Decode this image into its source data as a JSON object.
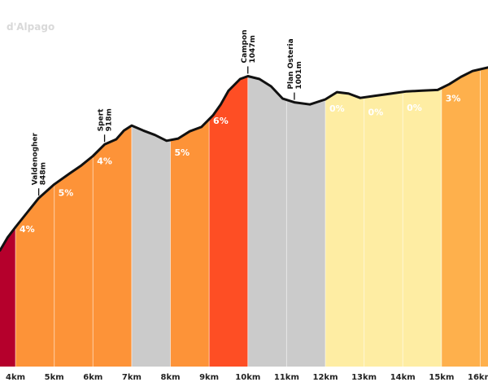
{
  "brand_text": "d'Alpago",
  "chart_data": {
    "type": "area",
    "title": "",
    "xlabel": "",
    "ylabel": "",
    "x_unit": "km",
    "xlim": [
      3.6,
      16.2
    ],
    "ylim": [
      600,
      1060
    ],
    "x_ticks": [
      4,
      5,
      6,
      7,
      8,
      9,
      10,
      11,
      12,
      13,
      14,
      15,
      16
    ],
    "x_tick_labels": [
      "4km",
      "5km",
      "6km",
      "7km",
      "8km",
      "9km",
      "10km",
      "11km",
      "12km",
      "13km",
      "14km",
      "15km",
      "16km"
    ],
    "profile": [
      {
        "km": 3.6,
        "ele": 760
      },
      {
        "km": 3.8,
        "ele": 778
      },
      {
        "km": 4.0,
        "ele": 792
      },
      {
        "km": 4.3,
        "ele": 812
      },
      {
        "km": 4.6,
        "ele": 832
      },
      {
        "km": 5.0,
        "ele": 851
      },
      {
        "km": 5.4,
        "ele": 866
      },
      {
        "km": 5.7,
        "ele": 877
      },
      {
        "km": 6.0,
        "ele": 890
      },
      {
        "km": 6.3,
        "ele": 906
      },
      {
        "km": 6.6,
        "ele": 913
      },
      {
        "km": 6.8,
        "ele": 925
      },
      {
        "km": 7.0,
        "ele": 932
      },
      {
        "km": 7.3,
        "ele": 925
      },
      {
        "km": 7.6,
        "ele": 919
      },
      {
        "km": 7.9,
        "ele": 911
      },
      {
        "km": 8.2,
        "ele": 914
      },
      {
        "km": 8.5,
        "ele": 924
      },
      {
        "km": 8.8,
        "ele": 930
      },
      {
        "km": 9.1,
        "ele": 946
      },
      {
        "km": 9.3,
        "ele": 961
      },
      {
        "km": 9.5,
        "ele": 980
      },
      {
        "km": 9.8,
        "ele": 996
      },
      {
        "km": 10.0,
        "ele": 1000
      },
      {
        "km": 10.3,
        "ele": 996
      },
      {
        "km": 10.6,
        "ele": 986
      },
      {
        "km": 10.9,
        "ele": 969
      },
      {
        "km": 11.2,
        "ele": 964
      },
      {
        "km": 11.6,
        "ele": 961
      },
      {
        "km": 12.0,
        "ele": 968
      },
      {
        "km": 12.3,
        "ele": 978
      },
      {
        "km": 12.6,
        "ele": 976
      },
      {
        "km": 12.9,
        "ele": 970
      },
      {
        "km": 13.3,
        "ele": 973
      },
      {
        "km": 13.7,
        "ele": 976
      },
      {
        "km": 14.1,
        "ele": 979
      },
      {
        "km": 14.5,
        "ele": 980
      },
      {
        "km": 14.9,
        "ele": 981
      },
      {
        "km": 15.2,
        "ele": 989
      },
      {
        "km": 15.5,
        "ele": 999
      },
      {
        "km": 15.8,
        "ele": 1007
      },
      {
        "km": 16.2,
        "ele": 1012
      }
    ],
    "segments": [
      {
        "start": 3.6,
        "end": 4.0,
        "grade": "",
        "color": "#b5002c"
      },
      {
        "start": 4.0,
        "end": 7.0,
        "grade": "4%",
        "color": "#fd9338"
      },
      {
        "start": 7.0,
        "end": 8.0,
        "grade": "",
        "color": "#cbcbcb"
      },
      {
        "start": 8.0,
        "end": 9.0,
        "grade": "5%",
        "color": "#fd9338"
      },
      {
        "start": 9.0,
        "end": 10.0,
        "grade": "6%",
        "color": "#fe4e24"
      },
      {
        "start": 10.0,
        "end": 12.0,
        "grade": "",
        "color": "#cbcbcb"
      },
      {
        "start": 12.0,
        "end": 15.0,
        "grade": "",
        "color": "#feeda3"
      },
      {
        "start": 15.0,
        "end": 16.2,
        "grade": "3%",
        "color": "#feb04c"
      }
    ],
    "grade_labels": [
      {
        "km": 4.3,
        "text": "4%"
      },
      {
        "km": 5.3,
        "text": "5%"
      },
      {
        "km": 6.3,
        "text": "4%"
      },
      {
        "km": 8.3,
        "text": "5%"
      },
      {
        "km": 9.3,
        "text": "6%"
      },
      {
        "km": 12.3,
        "text": "0%"
      },
      {
        "km": 13.3,
        "text": "0%"
      },
      {
        "km": 14.3,
        "text": "0%"
      },
      {
        "km": 15.3,
        "text": "3%"
      }
    ],
    "waypoints": [
      {
        "km": 4.6,
        "name": "Valdenogher",
        "elevation": "848m"
      },
      {
        "km": 6.3,
        "name": "Spert",
        "elevation": "918m"
      },
      {
        "km": 10.0,
        "name": "Campon",
        "elevation": "1047m"
      },
      {
        "km": 11.2,
        "name": "Plan Osteria",
        "elevation": "1001m"
      }
    ],
    "colors": {
      "line": "#111111",
      "grade_text": "#ffffff",
      "axis_text": "#222222",
      "gridline": "#ffffff"
    }
  }
}
